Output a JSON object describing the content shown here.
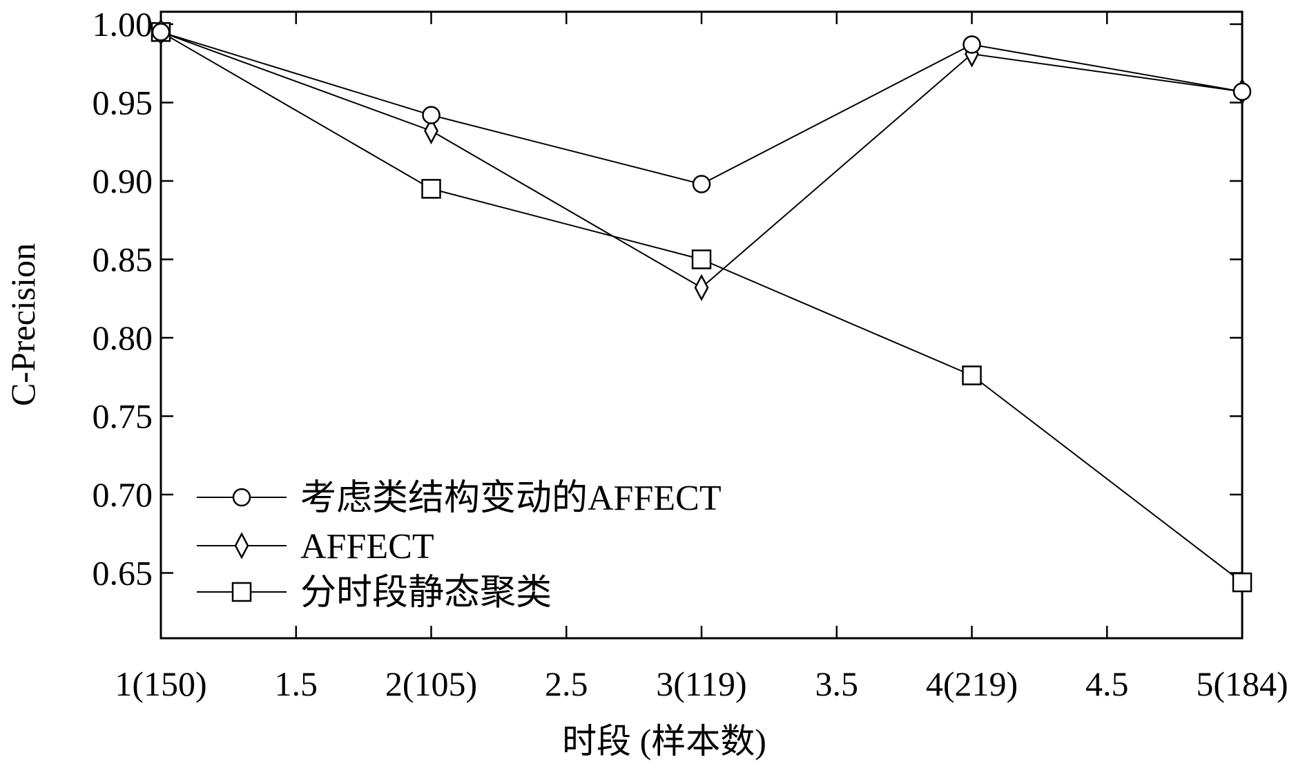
{
  "chart_data": {
    "type": "line",
    "title": "",
    "xlabel": "时段 (样本数)",
    "ylabel": "C-Precision",
    "xlim": [
      1,
      5
    ],
    "ylim": [
      0.6,
      1.0
    ],
    "x_ticks": [
      {
        "value": 1,
        "label": "1(150)"
      },
      {
        "value": 1.5,
        "label": "1.5"
      },
      {
        "value": 2,
        "label": "2(105)"
      },
      {
        "value": 2.5,
        "label": "2.5"
      },
      {
        "value": 3,
        "label": "3(119)"
      },
      {
        "value": 3.5,
        "label": "3.5"
      },
      {
        "value": 4,
        "label": "4(219)"
      },
      {
        "value": 4.5,
        "label": "4.5"
      },
      {
        "value": 5,
        "label": "5(184)"
      }
    ],
    "y_ticks": [
      {
        "value": 1.0,
        "label": "1.00"
      },
      {
        "value": 0.95,
        "label": "0.95"
      },
      {
        "value": 0.9,
        "label": "0.90"
      },
      {
        "value": 0.85,
        "label": "0.85"
      },
      {
        "value": 0.8,
        "label": "0.80"
      },
      {
        "value": 0.75,
        "label": "0.75"
      },
      {
        "value": 0.7,
        "label": "0.70"
      },
      {
        "value": 0.65,
        "label": "0.65"
      }
    ],
    "x": [
      1,
      2,
      3,
      4,
      5
    ],
    "series": [
      {
        "name": "考虑类结构变动的AFFECT",
        "marker": "circle",
        "values": [
          0.995,
          0.942,
          0.898,
          0.987,
          0.957
        ]
      },
      {
        "name": "AFFECT",
        "marker": "diamond",
        "values": [
          0.995,
          0.932,
          0.832,
          0.981,
          0.957
        ]
      },
      {
        "name": "分时段静态聚类",
        "marker": "square",
        "values": [
          0.995,
          0.895,
          0.85,
          0.776,
          0.644
        ]
      }
    ],
    "grid": false,
    "legend_position": "bottom-left",
    "line_color": "#000000"
  }
}
